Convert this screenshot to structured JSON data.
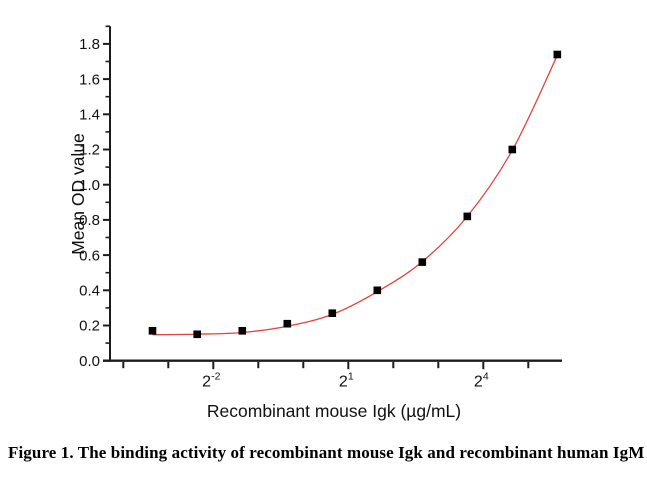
{
  "figure": {
    "caption": "Figure 1. The binding activity of recombinant mouse Igk and recombinant human IgM"
  },
  "chart_data": {
    "type": "scatter",
    "title": "",
    "xlabel": "Recombinant mouse Igk (µg/mL)",
    "ylabel": "Mean OD value",
    "x_scale": "log2",
    "x_tick_base": "2",
    "x_tick_exponents": [
      -4,
      -3,
      -2,
      -1,
      0,
      1,
      2,
      3,
      4,
      5
    ],
    "x_labeled_exponents": [
      -2,
      1,
      4
    ],
    "ylim": [
      0,
      1.9
    ],
    "y_major_ticks": [
      0.0,
      0.2,
      0.4,
      0.6,
      0.8,
      1.0,
      1.2,
      1.4,
      1.6,
      1.8
    ],
    "y_minor_ticks": [
      0.1,
      0.3,
      0.5,
      0.7,
      0.9,
      1.1,
      1.3,
      1.5,
      1.7,
      1.9
    ],
    "grid": false,
    "legend": "none",
    "colors": {
      "axis": "#1c1c1c",
      "tick_label": "#111111",
      "marker": "#000000",
      "curve": "#e4423d"
    },
    "series": [
      {
        "name": "Mean OD value",
        "marker": "square",
        "x": [
          0.098,
          0.195,
          0.391,
          0.781,
          1.563,
          3.125,
          6.25,
          12.5,
          25,
          50
        ],
        "y": [
          0.17,
          0.15,
          0.17,
          0.21,
          0.27,
          0.4,
          0.56,
          0.82,
          1.2,
          1.74
        ]
      }
    ],
    "fit_curve": {
      "name": "fitted curve",
      "x": [
        0.098,
        0.195,
        0.391,
        0.781,
        1.563,
        3.125,
        6.25,
        12.5,
        25,
        50
      ],
      "y": [
        0.148,
        0.151,
        0.16,
        0.196,
        0.263,
        0.392,
        0.563,
        0.82,
        1.196,
        1.735
      ]
    }
  }
}
